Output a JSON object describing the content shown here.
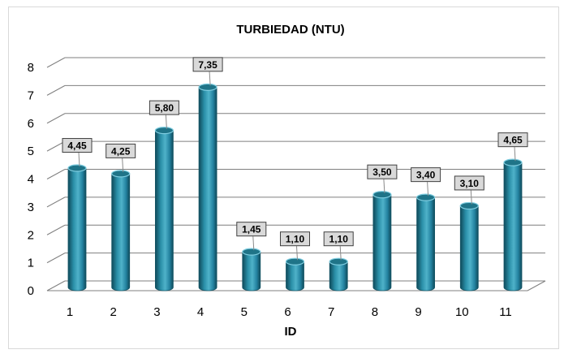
{
  "chart_data": {
    "type": "bar",
    "title": "TURBIEDAD (NTU)",
    "xlabel": "ID",
    "ylabel": "",
    "categories": [
      "1",
      "2",
      "3",
      "4",
      "5",
      "6",
      "7",
      "8",
      "9",
      "10",
      "11"
    ],
    "values": [
      4.45,
      4.25,
      5.8,
      7.35,
      1.45,
      1.1,
      1.1,
      3.5,
      3.4,
      3.1,
      4.65
    ],
    "data_labels": [
      "4,45",
      "4,25",
      "5,80",
      "7,35",
      "1,45",
      "1,10",
      "1,10",
      "3,50",
      "3,40",
      "3,10",
      "4,65"
    ],
    "ylim": [
      0,
      8
    ],
    "yticks": [
      "0",
      "1",
      "2",
      "3",
      "4",
      "5",
      "6",
      "7",
      "8"
    ],
    "grid": true,
    "bar_style": "3d-cylinder",
    "colors": {
      "bar": "#2a8fa8",
      "bar_dark": "#145566",
      "bar_light": "#7fcde0",
      "bar_top": "#1f7488",
      "grid": "#7f7f7f",
      "label_box": "#d9d9d9",
      "label_border": "#404040"
    }
  }
}
